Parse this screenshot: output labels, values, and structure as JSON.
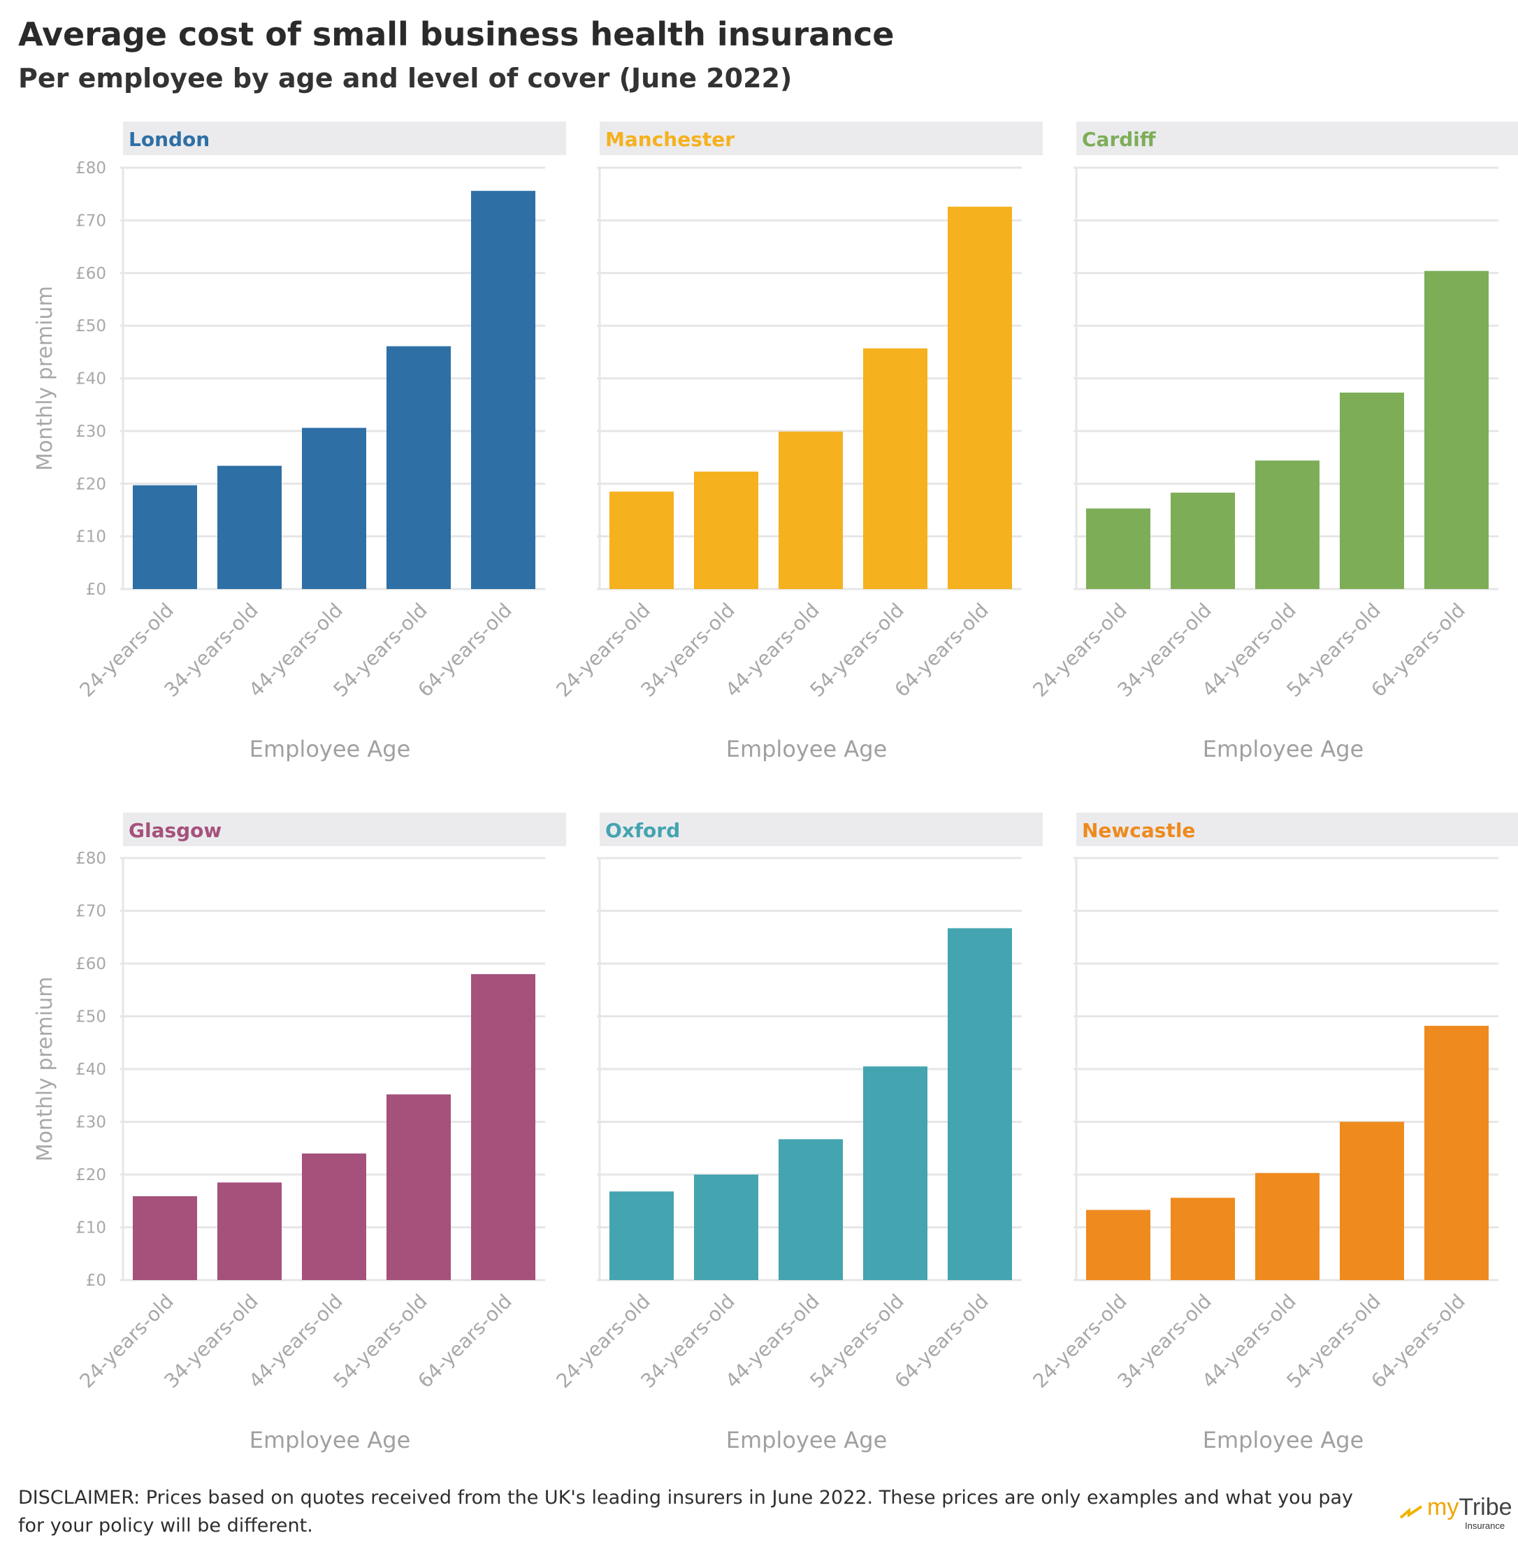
{
  "title": "Average cost of small business health insurance",
  "subtitle": "Per employee by age and level of cover (June 2022)",
  "disclaimer": "DISCLAIMER: Prices based on quotes received from the UK's leading insurers in June 2022. These prices are only examples and what you pay for your policy will be different.",
  "logo": {
    "brand_prefix": "my",
    "brand_main": "Tribe",
    "brand_sub": "Insurance"
  },
  "chart_data": {
    "type": "bar",
    "xlabel": "Employee Age",
    "ylabel": "Monthly premium",
    "ylim": [
      0,
      80
    ],
    "yticks": [
      0,
      10,
      20,
      30,
      40,
      50,
      60,
      70,
      80
    ],
    "ytick_labels": [
      "£0",
      "£10",
      "£20",
      "£30",
      "£40",
      "£50",
      "£60",
      "£70",
      "£80"
    ],
    "categories": [
      "24-years-old",
      "34-years-old",
      "44-years-old",
      "54-years-old",
      "64-years-old"
    ],
    "series": [
      {
        "name": "London",
        "color": "#2e6fa5",
        "values": [
          19.7,
          23.4,
          30.6,
          46.1,
          75.6
        ]
      },
      {
        "name": "Manchester",
        "color": "#f5b11e",
        "values": [
          18.5,
          22.3,
          29.9,
          45.7,
          72.6
        ]
      },
      {
        "name": "Cardiff",
        "color": "#7ead58",
        "values": [
          15.3,
          18.3,
          24.4,
          37.3,
          60.4
        ]
      },
      {
        "name": "Glasgow",
        "color": "#a5517c",
        "values": [
          15.9,
          18.5,
          24.0,
          35.2,
          58.0
        ]
      },
      {
        "name": "Oxford",
        "color": "#44a4b0",
        "values": [
          16.8,
          20.0,
          26.7,
          40.5,
          66.7
        ]
      },
      {
        "name": "Newcastle",
        "color": "#ee8a1e",
        "values": [
          13.3,
          15.6,
          20.3,
          30.0,
          48.2
        ]
      }
    ]
  }
}
